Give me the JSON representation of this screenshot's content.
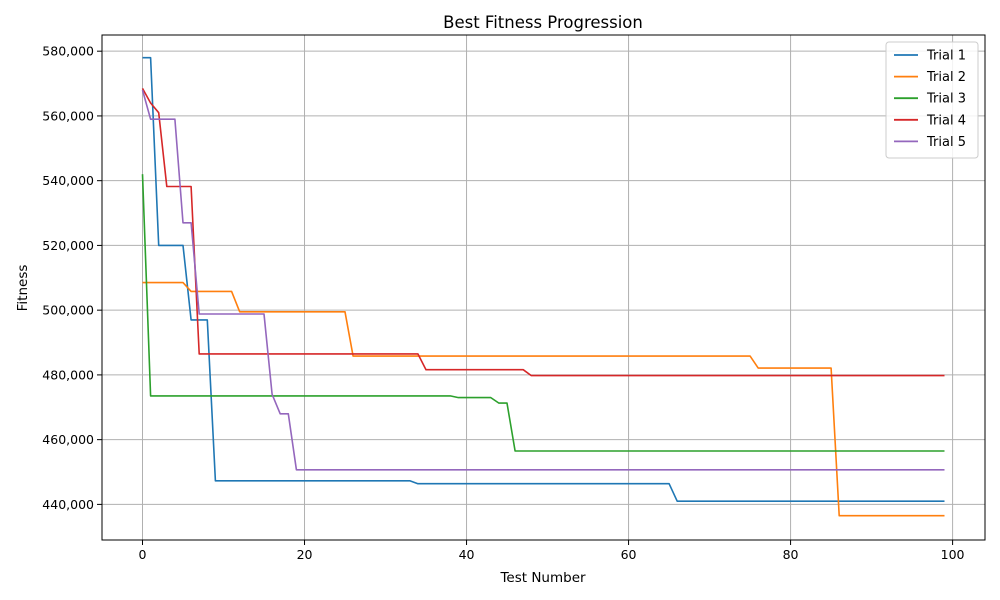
{
  "chart_data": {
    "type": "line",
    "title": "Best Fitness Progression",
    "xlabel": "Test Number",
    "ylabel": "Fitness",
    "xlim": [
      -5,
      104
    ],
    "ylim": [
      429000,
      585000
    ],
    "xticks": [
      0,
      20,
      40,
      60,
      80,
      100
    ],
    "yticks": [
      440000,
      460000,
      480000,
      500000,
      520000,
      540000,
      560000,
      580000
    ],
    "ytick_labels": [
      "440,000",
      "460,000",
      "480,000",
      "500,000",
      "520,000",
      "540,000",
      "560,000",
      "580,000"
    ],
    "grid": true,
    "legend_position": "top-right",
    "series": [
      {
        "name": "Trial 1",
        "color": "#1f77b4",
        "x": [
          0,
          1,
          2,
          5,
          6,
          8,
          9,
          33,
          34,
          65,
          66,
          99
        ],
        "y": [
          578000,
          578000,
          520000,
          520000,
          497000,
          497000,
          447300,
          447300,
          446400,
          446400,
          441000,
          441000
        ]
      },
      {
        "name": "Trial 2",
        "color": "#ff7f0e",
        "x": [
          0,
          5,
          6,
          11,
          12,
          25,
          26,
          75,
          76,
          85,
          86,
          99
        ],
        "y": [
          508500,
          508500,
          505800,
          505800,
          499500,
          499500,
          485800,
          485800,
          482100,
          482100,
          436500,
          436500
        ]
      },
      {
        "name": "Trial 3",
        "color": "#2ca02c",
        "x": [
          0,
          1,
          38,
          39,
          43,
          44,
          45,
          46,
          99
        ],
        "y": [
          542000,
          473500,
          473500,
          473000,
          473000,
          471300,
          471300,
          456500,
          456500
        ]
      },
      {
        "name": "Trial 4",
        "color": "#d62728",
        "x": [
          0,
          1,
          2,
          3,
          6,
          7,
          34,
          35,
          47,
          48,
          99
        ],
        "y": [
          568500,
          564000,
          561000,
          538200,
          538200,
          486500,
          486500,
          481600,
          481600,
          479800,
          479800
        ]
      },
      {
        "name": "Trial 5",
        "color": "#9467bd",
        "x": [
          0,
          1,
          4,
          5,
          6,
          7,
          15,
          16,
          17,
          18,
          19,
          99
        ],
        "y": [
          568000,
          559000,
          559000,
          527000,
          527000,
          498800,
          498800,
          474000,
          468000,
          468000,
          450700,
          450700
        ]
      }
    ]
  }
}
